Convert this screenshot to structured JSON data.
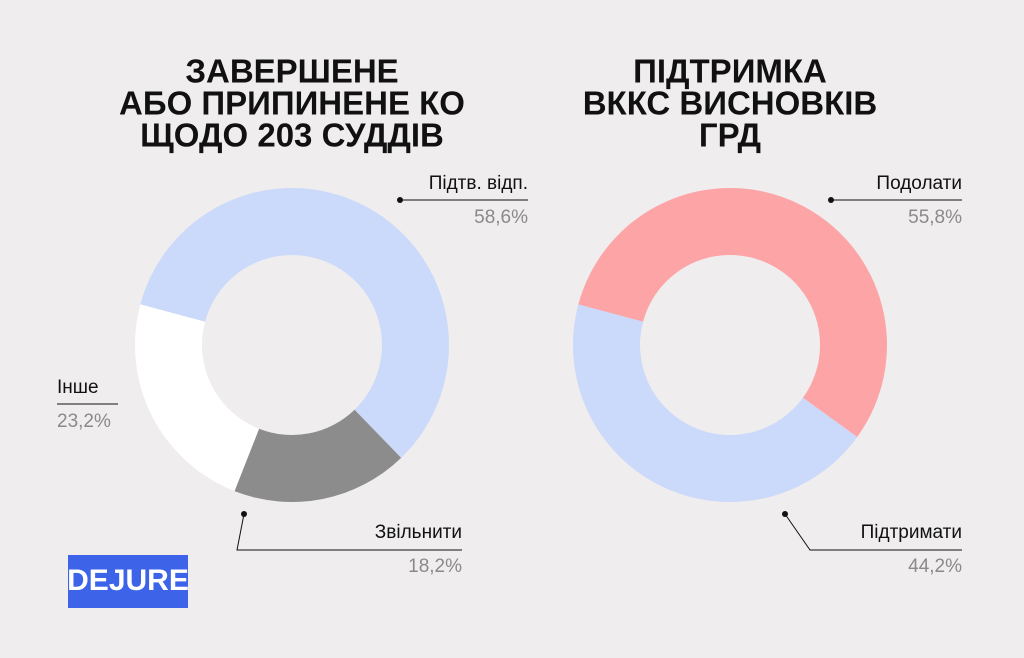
{
  "logo": "DEJURE",
  "chart_data": [
    {
      "type": "pie",
      "donut": true,
      "title": [
        "ЗАВЕРШЕНЕ",
        "АБО ПРИПИНЕНЕ КО",
        "ЩОДО 203 СУДДІВ"
      ],
      "categories": [
        "Підтв. відп.",
        "Звільнити",
        "Інше"
      ],
      "values": [
        58.6,
        18.2,
        23.2
      ],
      "value_labels": [
        "58,6%",
        "18,2%",
        "23,2%"
      ],
      "colors": [
        "#cbd9fa",
        "#8c8c8c",
        "#ffffff"
      ]
    },
    {
      "type": "pie",
      "donut": true,
      "title": [
        "ПІДТРИМКА",
        "ВККС ВИСНОВКІВ",
        "ГРД"
      ],
      "categories": [
        "Подолати",
        "Підтримати"
      ],
      "values": [
        55.8,
        44.2
      ],
      "value_labels": [
        "55,8%",
        "44,2%"
      ],
      "colors": [
        "#fda4a6",
        "#cbd9fa"
      ]
    }
  ]
}
